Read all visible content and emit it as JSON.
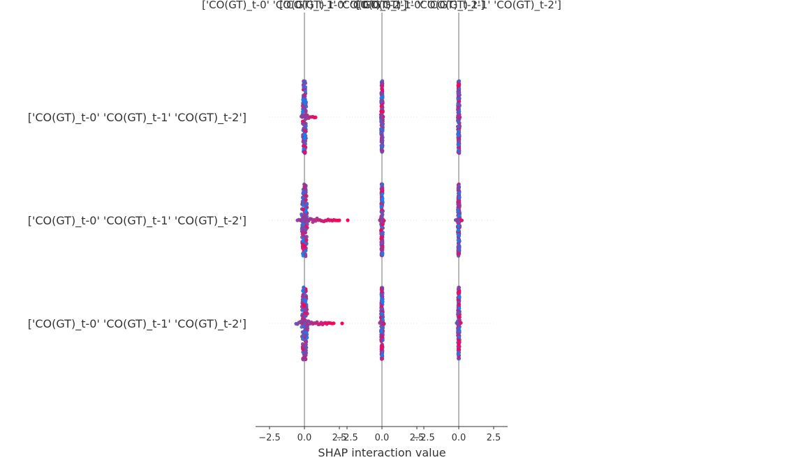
{
  "chart_data": {
    "type": "scatter",
    "plot_kind": "SHAP interaction summary (beeswarm matrix)",
    "xlabel": "SHAP interaction value",
    "xlim": [
      -3.5,
      3.5
    ],
    "xticks": [
      -2.5,
      0.0,
      2.5
    ],
    "xtick_labels": [
      "−2.5",
      "0.0",
      "2.5"
    ],
    "features": [
      "['CO(GT)_t-0' 'CO(GT)_t-1' 'CO(GT)_t-2']",
      "['CO(GT)_t-0' 'CO(GT)_t-1' 'CO(GT)_t-2']",
      "['CO(GT)_t-0' 'CO(GT)_t-1' 'CO(GT)_t-2']"
    ],
    "column_titles": [
      "['CO(GT)_t-0' 'CO(GT)_t-1' 'CO(GT)_t-2']",
      "['CO(GT)_t-0' 'CO(GT)_t-1' 'CO(GT)_t-2']",
      "['CO(GT)_t-0' 'CO(GT)_t-1' 'CO(GT)_t-2']"
    ],
    "color_low": "#008bfb",
    "color_high": "#ff0052",
    "zero_line_color": "#999999",
    "cells": [
      [
        {
          "center": 0.0,
          "spread": 0.1,
          "tail_right": 0.9,
          "tail_left": -0.3
        },
        {
          "center": 0.0,
          "spread": 0.05,
          "tail_right": 0.1,
          "tail_left": -0.1
        },
        {
          "center": 0.0,
          "spread": 0.05,
          "tail_right": 0.1,
          "tail_left": -0.1
        }
      ],
      [
        {
          "center": 0.0,
          "spread": 0.15,
          "tail_right": 2.6,
          "tail_left": -0.6
        },
        {
          "center": 0.0,
          "spread": 0.05,
          "tail_right": 0.2,
          "tail_left": -0.2
        },
        {
          "center": 0.0,
          "spread": 0.05,
          "tail_right": 0.3,
          "tail_left": -0.3
        }
      ],
      [
        {
          "center": 0.0,
          "spread": 0.15,
          "tail_right": 2.2,
          "tail_left": -0.7
        },
        {
          "center": 0.0,
          "spread": 0.05,
          "tail_right": 0.2,
          "tail_left": -0.2
        },
        {
          "center": 0.0,
          "spread": 0.05,
          "tail_right": 0.2,
          "tail_left": -0.2
        }
      ]
    ]
  }
}
